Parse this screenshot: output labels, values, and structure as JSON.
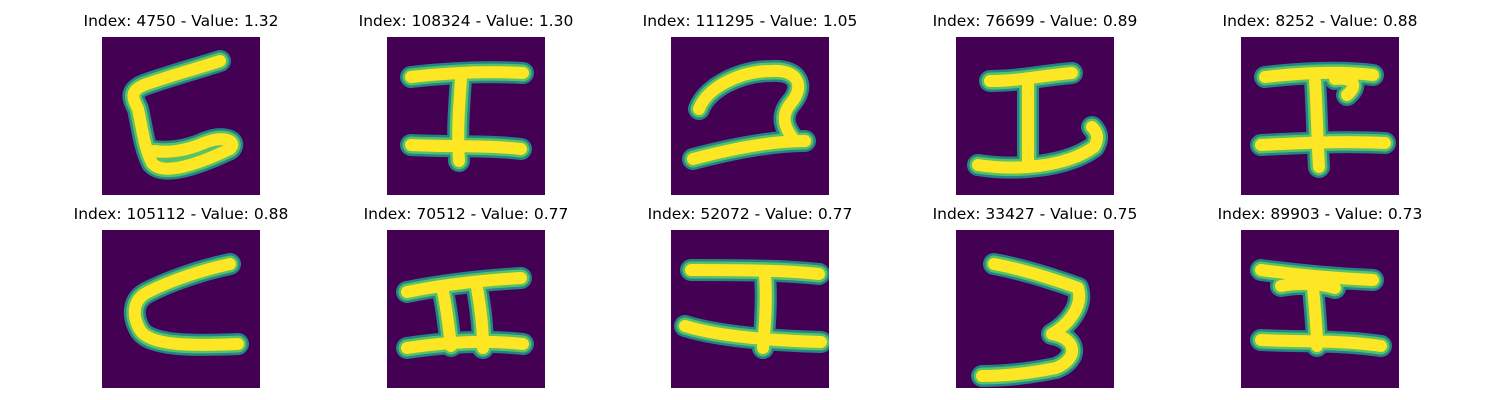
{
  "colors": {
    "background": "#440154",
    "stroke_outer": "#21918c",
    "stroke_mid": "#5ec962",
    "stroke_core": "#fde725"
  },
  "panels": [
    {
      "label_index": "Index: 4750",
      "label_value": "Value: 1.32",
      "glyph": "g0"
    },
    {
      "label_index": "Index: 108324",
      "label_value": "Value: 1.30",
      "glyph": "g1"
    },
    {
      "label_index": "Index: 111295",
      "label_value": "Value: 1.05",
      "glyph": "g2"
    },
    {
      "label_index": "Index: 76699",
      "label_value": "Value: 0.89",
      "glyph": "g3"
    },
    {
      "label_index": "Index: 8252",
      "label_value": "Value: 0.88",
      "glyph": "g4"
    },
    {
      "label_index": "Index: 105112",
      "label_value": "Value: 0.88",
      "glyph": "g5"
    },
    {
      "label_index": "Index: 70512",
      "label_value": "Value: 0.77",
      "glyph": "g6"
    },
    {
      "label_index": "Index: 52072",
      "label_value": "Value: 0.77",
      "glyph": "g7"
    },
    {
      "label_index": "Index: 33427",
      "label_value": "Value: 0.75",
      "glyph": "g8"
    },
    {
      "label_index": "Index: 89903",
      "label_value": "Value: 0.73",
      "glyph": "g9"
    }
  ]
}
